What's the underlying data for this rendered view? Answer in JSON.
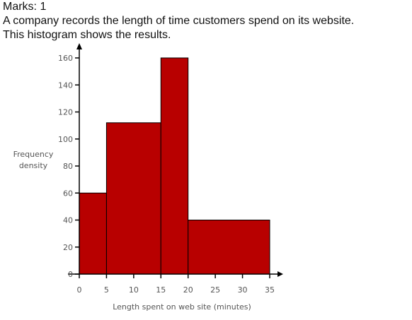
{
  "question": {
    "marks": "Marks: 1",
    "line1": "A company records the length of time customers spend on its website.",
    "line2": "This histogram shows the results."
  },
  "chart_data": {
    "type": "bar",
    "subtype": "histogram",
    "xlabel": "Length spent on web site (minutes)",
    "ylabel_lines": [
      "Frequency",
      "density"
    ],
    "xlim": [
      0,
      35
    ],
    "ylim": [
      0,
      160
    ],
    "x_ticks": [
      0,
      5,
      10,
      15,
      20,
      25,
      30,
      35
    ],
    "y_ticks": [
      0,
      20,
      40,
      60,
      80,
      100,
      120,
      140,
      160
    ],
    "bins": [
      {
        "from": 0,
        "to": 5,
        "value": 60
      },
      {
        "from": 5,
        "to": 15,
        "value": 112
      },
      {
        "from": 15,
        "to": 20,
        "value": 160
      },
      {
        "from": 20,
        "to": 35,
        "value": 40
      }
    ],
    "bar_color": "#b80000",
    "axis_color": "#000000",
    "grid": false
  }
}
